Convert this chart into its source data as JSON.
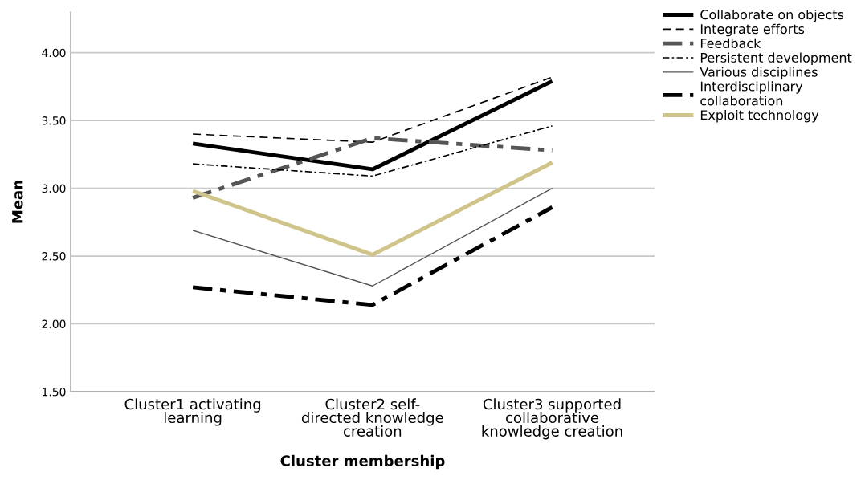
{
  "chart_data": {
    "type": "line",
    "xlabel": "Cluster membership",
    "ylabel": "Mean",
    "categories": [
      "Cluster1 activating\nlearning",
      "Cluster2 self-\ndirected knowledge\ncreation",
      "Cluster3 supported\ncollaborative\nknowledge creation"
    ],
    "ylim": [
      1.5,
      4.3
    ],
    "yticks": [
      {
        "value": 1.5,
        "label": "1.50"
      },
      {
        "value": 2.0,
        "label": "2.00"
      },
      {
        "value": 2.5,
        "label": "2.50"
      },
      {
        "value": 3.0,
        "label": "3.00"
      },
      {
        "value": 3.5,
        "label": "3.50"
      },
      {
        "value": 4.0,
        "label": "4.00"
      }
    ],
    "grid": "y",
    "legend": "top right",
    "marker": "none",
    "series": [
      {
        "name": "Collaborate on objects",
        "color": "#000000",
        "line_style": "solid",
        "values": [
          3.33,
          3.14,
          3.79
        ]
      },
      {
        "name": "Integrate efforts",
        "color": "#000000",
        "line_style": "dashed",
        "values": [
          3.4,
          3.34,
          3.82
        ]
      },
      {
        "name": "Feedback",
        "color": "#555555",
        "line_style": "dashdot",
        "values": [
          2.93,
          3.37,
          3.28
        ]
      },
      {
        "name": "Persistent development",
        "color": "#000000",
        "line_style": "dashdot",
        "values": [
          3.18,
          3.09,
          3.46
        ]
      },
      {
        "name": "Various disciplines",
        "color": "#555555",
        "line_style": "solid",
        "values": [
          2.69,
          2.28,
          3.0
        ]
      },
      {
        "name": "Interdisciplinary\ncollaboration",
        "color": "#000000",
        "line_style": "dashdot",
        "values": [
          2.27,
          2.14,
          2.86
        ]
      },
      {
        "name": "Exploit technology",
        "color": "#cfc48a",
        "line_style": "solid",
        "values": [
          2.98,
          2.51,
          3.19
        ]
      }
    ]
  }
}
